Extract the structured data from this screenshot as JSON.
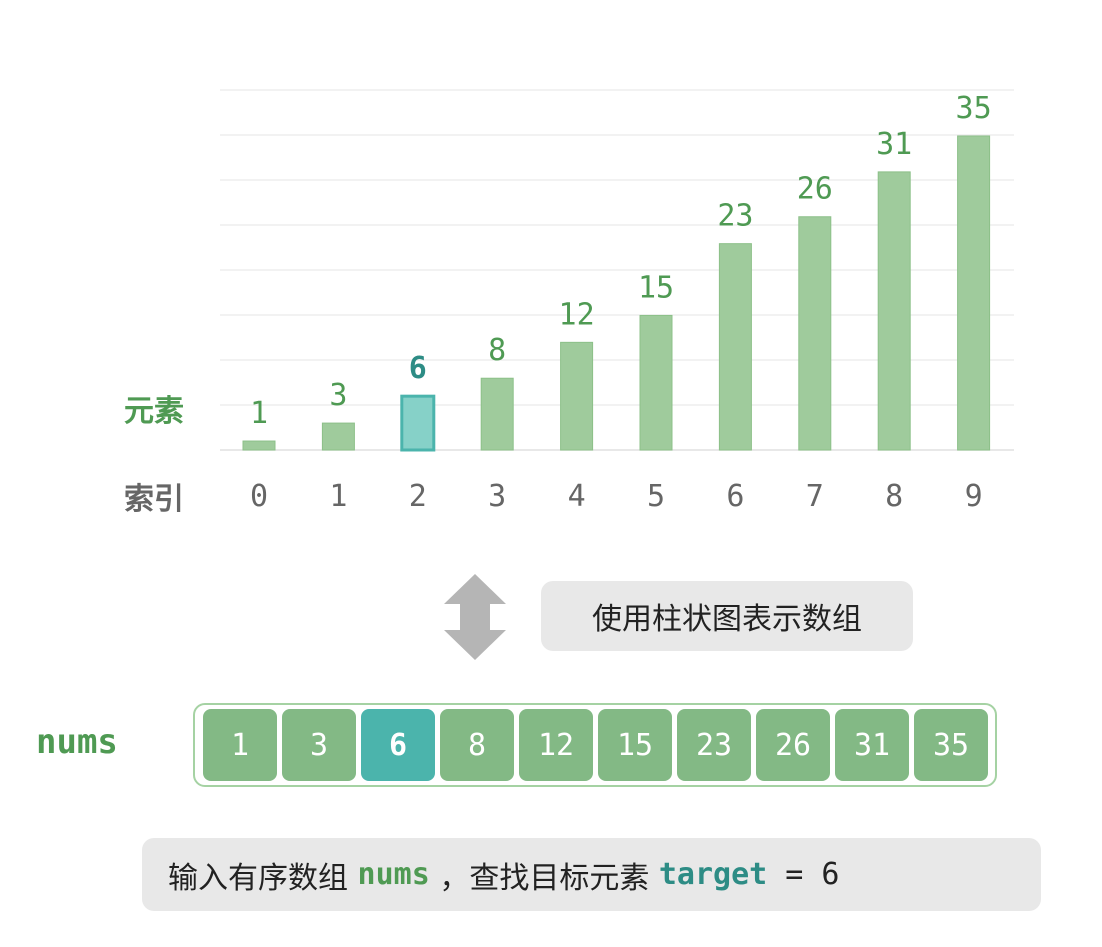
{
  "labels": {
    "element": "元素",
    "index": "索引"
  },
  "caption_top": "使用柱状图表示数组",
  "array_name": "nums",
  "caption_bottom": {
    "part1": "输入有序数组 ",
    "code1": "nums",
    "part2": " ，查找目标元素 ",
    "code2": "target",
    "part3": " = 6"
  },
  "colors": {
    "bar": "#9fcb9c",
    "bar_highlight": "#86d1c8",
    "value_text": "#4f9a53",
    "value_highlight": "#2d8c85",
    "cell": "#83b985",
    "cell_highlight": "#4bb4ac",
    "label_grey": "#666666"
  },
  "highlight_index": 2,
  "chart_data": {
    "type": "bar",
    "categories": [
      "0",
      "1",
      "2",
      "3",
      "4",
      "5",
      "6",
      "7",
      "8",
      "9"
    ],
    "values": [
      1,
      3,
      6,
      8,
      12,
      15,
      23,
      26,
      31,
      35
    ],
    "ylim": [
      0,
      40
    ],
    "grid": true
  }
}
